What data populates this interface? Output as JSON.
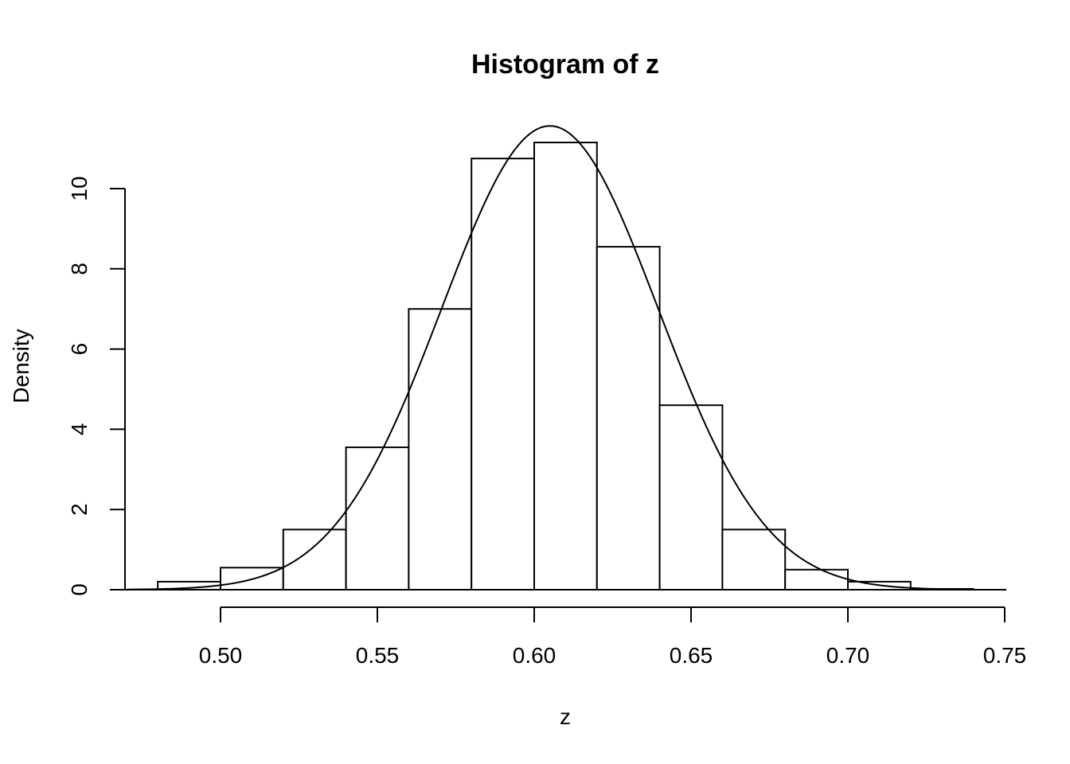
{
  "chart_data": {
    "type": "bar",
    "subtype": "histogram-with-density-curve",
    "title": "Histogram of z",
    "xlabel": "z",
    "ylabel": "Density",
    "xlim": [
      0.48,
      0.74
    ],
    "ylim": [
      0,
      11.8
    ],
    "x_ticks": [
      0.5,
      0.55,
      0.6,
      0.65,
      0.7,
      0.75
    ],
    "x_tick_labels": [
      "0.50",
      "0.55",
      "0.60",
      "0.65",
      "0.70",
      "0.75"
    ],
    "y_ticks": [
      0,
      2,
      4,
      6,
      8,
      10
    ],
    "y_tick_labels": [
      "0",
      "2",
      "4",
      "6",
      "8",
      "10"
    ],
    "bins": [
      {
        "x0": 0.48,
        "x1": 0.5,
        "density": 0.2
      },
      {
        "x0": 0.5,
        "x1": 0.52,
        "density": 0.55
      },
      {
        "x0": 0.52,
        "x1": 0.54,
        "density": 1.5
      },
      {
        "x0": 0.54,
        "x1": 0.56,
        "density": 3.55
      },
      {
        "x0": 0.56,
        "x1": 0.58,
        "density": 7.0
      },
      {
        "x0": 0.58,
        "x1": 0.6,
        "density": 10.75
      },
      {
        "x0": 0.6,
        "x1": 0.62,
        "density": 11.15
      },
      {
        "x0": 0.62,
        "x1": 0.64,
        "density": 8.55
      },
      {
        "x0": 0.64,
        "x1": 0.66,
        "density": 4.6
      },
      {
        "x0": 0.66,
        "x1": 0.68,
        "density": 1.5
      },
      {
        "x0": 0.68,
        "x1": 0.7,
        "density": 0.5
      },
      {
        "x0": 0.7,
        "x1": 0.72,
        "density": 0.2
      },
      {
        "x0": 0.72,
        "x1": 0.74,
        "density": 0.02
      }
    ],
    "curve": {
      "type": "normal-density",
      "mean": 0.605,
      "sd": 0.0345,
      "x_range": [
        0.47,
        0.74
      ]
    },
    "grid": false,
    "legend": "none"
  }
}
